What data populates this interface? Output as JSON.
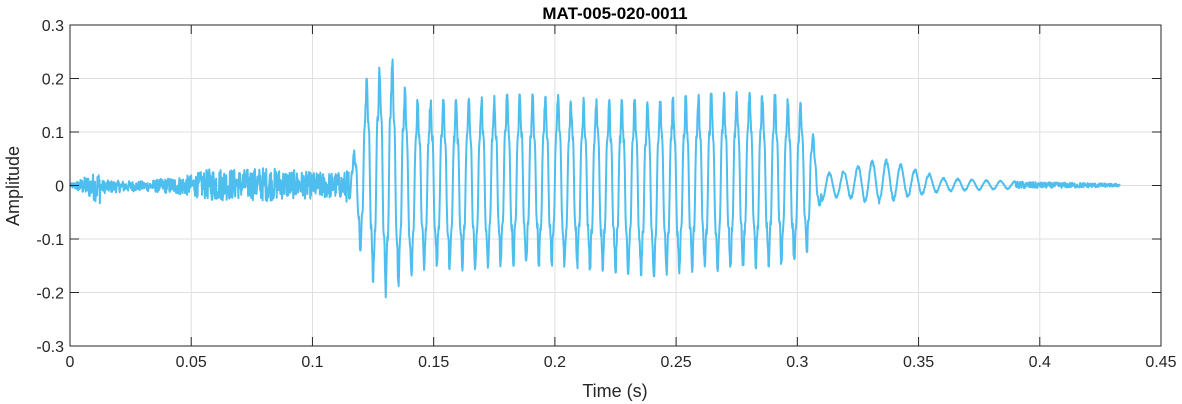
{
  "chart_data": {
    "type": "line",
    "title": "MAT-005-020-0011",
    "xlabel": "Time (s)",
    "ylabel": "Amplitude",
    "xlim": [
      0,
      0.45
    ],
    "ylim": [
      -0.3,
      0.3
    ],
    "grid": true,
    "xticks": [
      0,
      0.05,
      0.1,
      0.15,
      0.2,
      0.25,
      0.3,
      0.35,
      0.4,
      0.45
    ],
    "xtick_labels": [
      "0",
      "0.05",
      "0.1",
      "0.15",
      "0.2",
      "0.25",
      "0.3",
      "0.35",
      "0.4",
      "0.45"
    ],
    "yticks": [
      -0.3,
      -0.2,
      -0.1,
      0,
      0.1,
      0.2,
      0.3
    ],
    "ytick_labels": [
      "-0.3",
      "-0.2",
      "-0.1",
      "0",
      "0.1",
      "0.2",
      "0.3"
    ],
    "series_color": "#4DBEEE",
    "series": [
      {
        "x": [
          0,
          0.0125,
          0.013,
          0.03,
          0.05,
          0.06,
          0.07,
          0.08,
          0.09,
          0.1,
          0.105,
          0.112,
          0.115,
          0.118,
          0.12,
          0.125,
          0.13,
          0.1325,
          0.135,
          0.14,
          0.15,
          0.16,
          0.18,
          0.2,
          0.22,
          0.24,
          0.26,
          0.275,
          0.29,
          0.3,
          0.305,
          0.307,
          0.31,
          0.315,
          0.32,
          0.325,
          0.33,
          0.335,
          0.34,
          0.35,
          0.36,
          0.38,
          0.4,
          0.42,
          0.433
        ],
        "y_max": [
          0.003,
          0.03,
          0.01,
          0.008,
          0.02,
          0.035,
          0.03,
          0.035,
          0.03,
          0.025,
          0.025,
          0.025,
          0.03,
          0.08,
          0.19,
          0.21,
          0.23,
          0.24,
          0.22,
          0.16,
          0.16,
          0.16,
          0.17,
          0.17,
          0.16,
          0.16,
          0.17,
          0.175,
          0.17,
          0.16,
          0.14,
          0.08,
          0.03,
          0.025,
          0.03,
          0.04,
          0.05,
          0.055,
          0.045,
          0.03,
          0.015,
          0.01,
          0.006,
          0.005,
          0.003
        ],
        "y_min": [
          -0.003,
          -0.035,
          -0.015,
          -0.01,
          -0.02,
          -0.03,
          -0.025,
          -0.03,
          -0.025,
          -0.025,
          -0.025,
          -0.025,
          -0.035,
          -0.1,
          -0.13,
          -0.18,
          -0.21,
          -0.2,
          -0.19,
          -0.17,
          -0.15,
          -0.16,
          -0.15,
          -0.15,
          -0.16,
          -0.17,
          -0.16,
          -0.16,
          -0.15,
          -0.14,
          -0.12,
          -0.06,
          -0.03,
          -0.025,
          -0.025,
          -0.03,
          -0.035,
          -0.035,
          -0.03,
          -0.02,
          -0.012,
          -0.008,
          -0.005,
          -0.004,
          -0.002
        ]
      }
    ]
  }
}
